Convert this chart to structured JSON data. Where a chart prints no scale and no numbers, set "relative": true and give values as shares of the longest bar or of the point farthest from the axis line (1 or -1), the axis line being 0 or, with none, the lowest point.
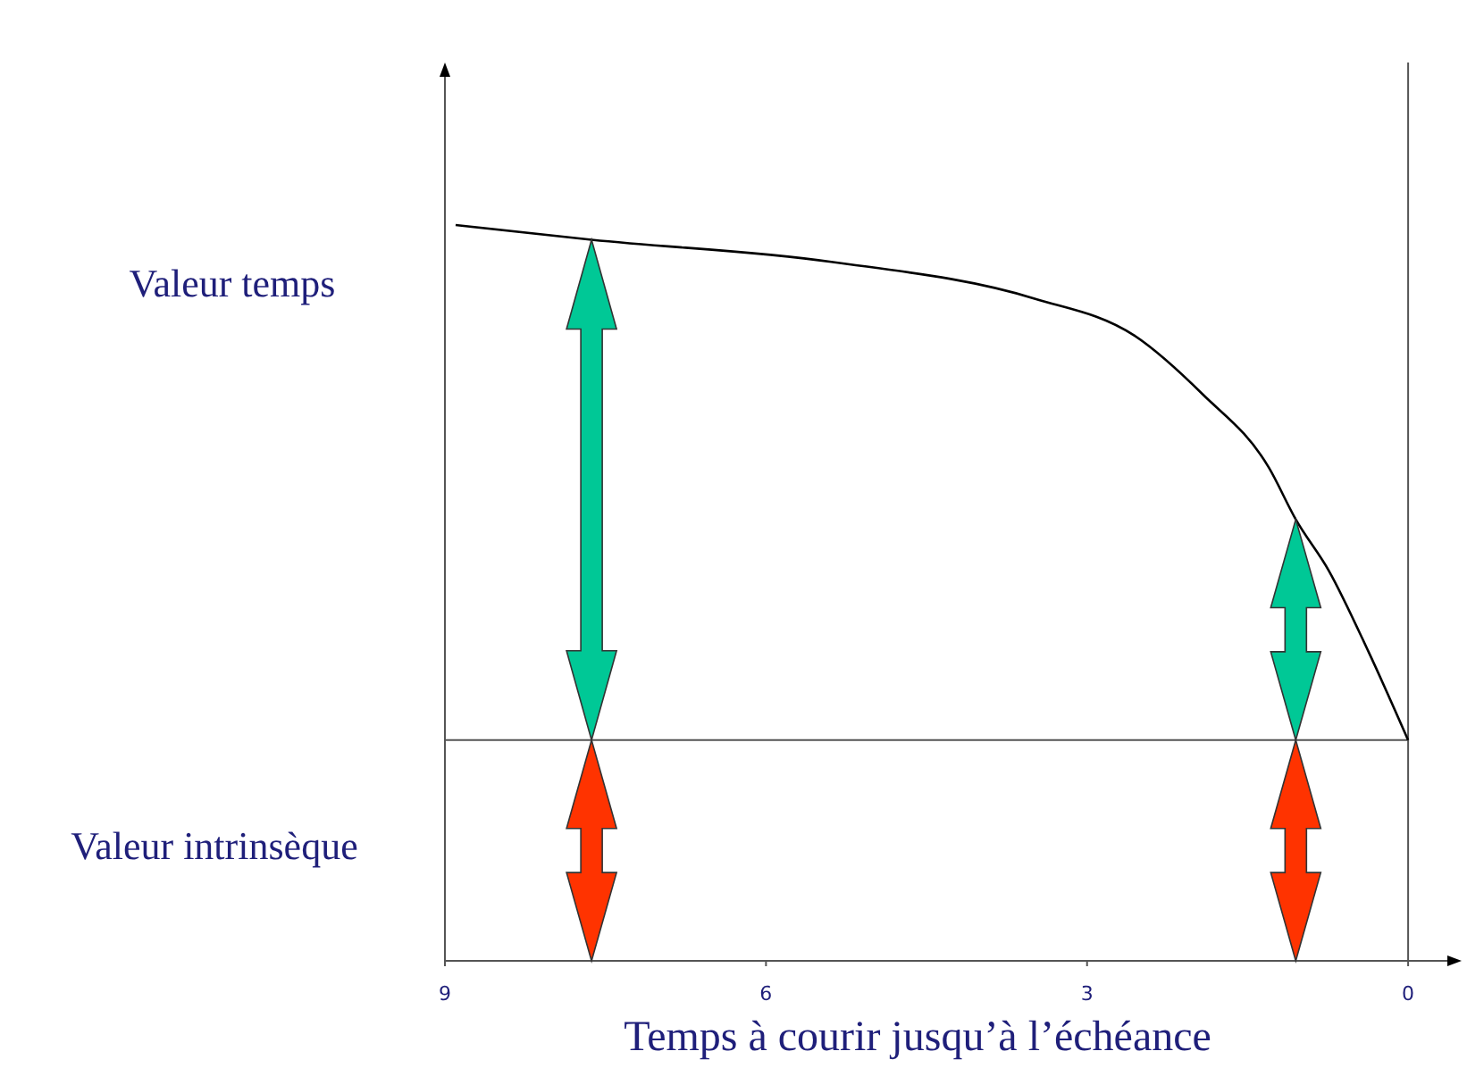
{
  "chart_data": {
    "type": "line",
    "relative": true,
    "xlabel": "Temps à courir jusqu’à l’échéance",
    "x": [
      8.9,
      7.63,
      5.39,
      3.49,
      2.56,
      1.92,
      1.3,
      1.05,
      0.74,
      0.37,
      0
    ],
    "series": [
      {
        "color": "#000000",
        "values": [
          1,
          0.98,
          0.95,
          0.9,
          0.85,
          0.77,
          0.67,
          0.6,
          0.53,
          0.42,
          0.3
        ]
      }
    ],
    "xlim": [
      9,
      -0.5
    ],
    "xticks": [
      9,
      6,
      3,
      0
    ],
    "ref_lines": [
      {
        "axis": "y",
        "value": 0.3,
        "color": "#555555"
      },
      {
        "axis": "x",
        "value": 0,
        "color": "#555555"
      }
    ],
    "annotations": [
      "Valeur temps",
      "Valeur intrinsèque"
    ],
    "grid": false,
    "marker": "none",
    "line_style": "solid"
  }
}
